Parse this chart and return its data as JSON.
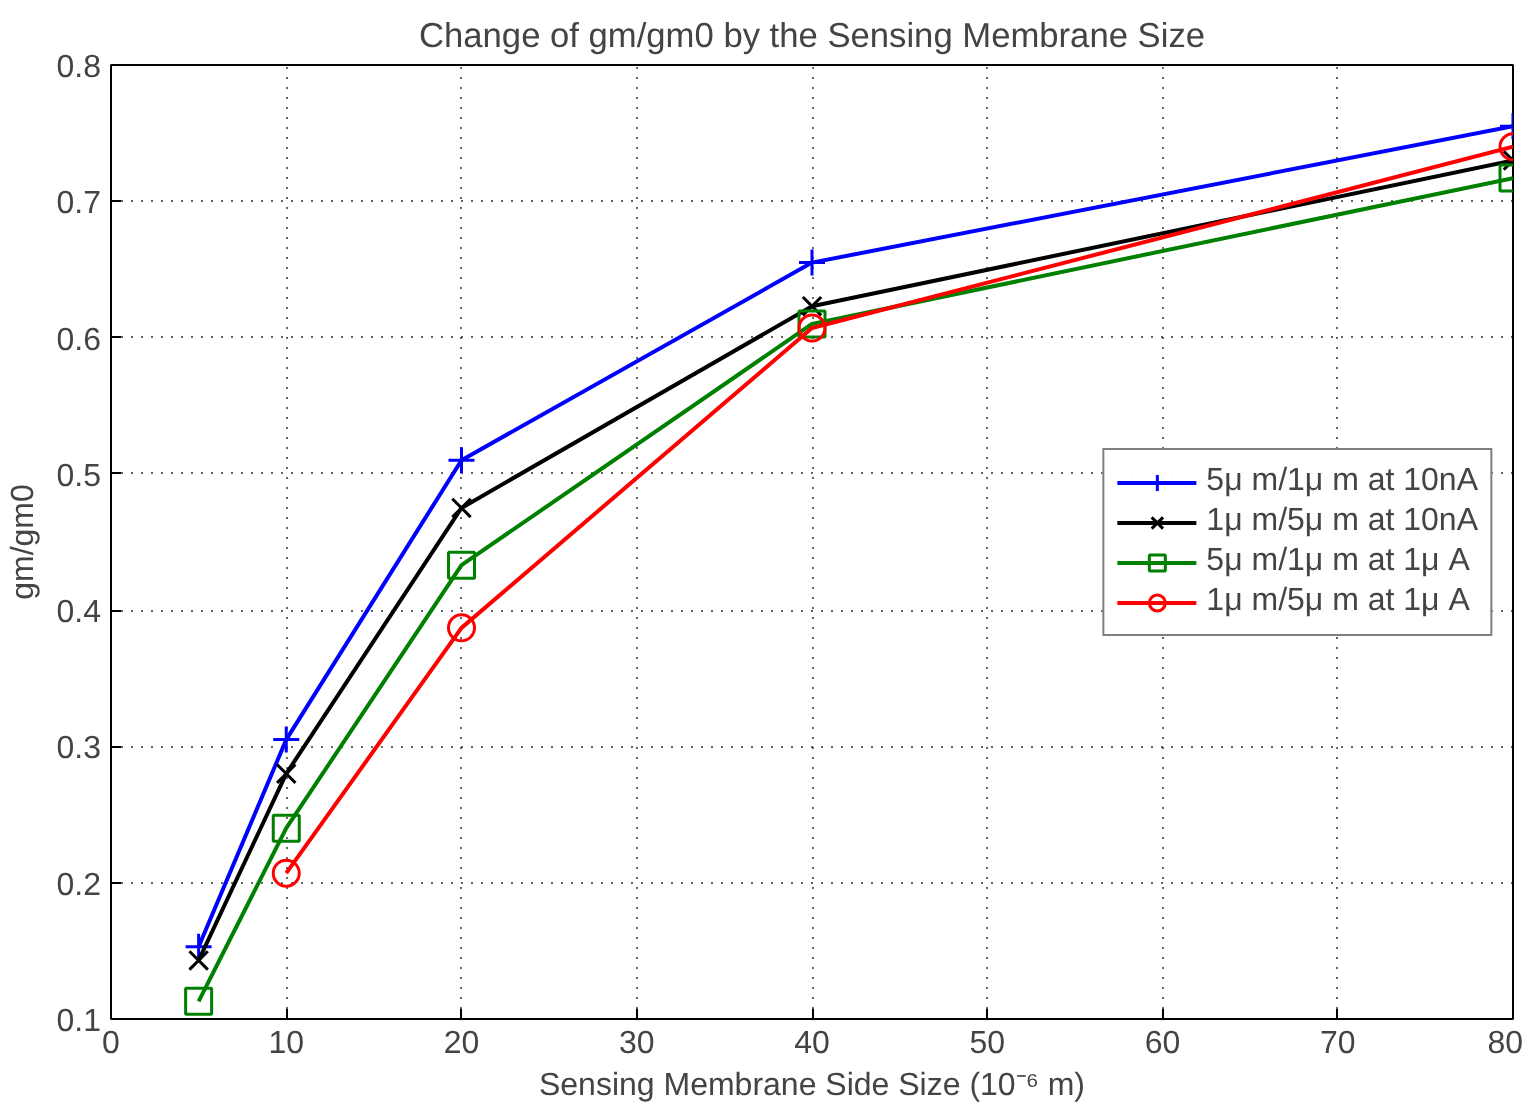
{
  "chart_data": {
    "type": "line",
    "title": "Change of gm/gm0 by the Sensing Membrane Size",
    "xlabel": "Sensing Membrane Side Size (10⁻⁶ m)",
    "ylabel": "gm/gm0",
    "x": [
      5,
      10,
      20,
      40,
      80
    ],
    "series": [
      {
        "name": "5μ m/1μ m at 10nA",
        "color": "#0000ff",
        "marker": "cross",
        "values": [
          0.153,
          0.305,
          0.51,
          0.655,
          0.755
        ]
      },
      {
        "name": "1μ m/5μ m at 10nA",
        "color": "#000000",
        "marker": "x",
        "values": [
          0.143,
          0.28,
          0.475,
          0.623,
          0.73
        ]
      },
      {
        "name": "5μ m/1μ m at 1μ A",
        "color": "#008000",
        "marker": "square",
        "values": [
          0.113,
          0.24,
          0.433,
          0.61,
          0.717
        ]
      },
      {
        "name": "1μ m/5μ m at 1μ A",
        "color": "#ff0000",
        "marker": "circle",
        "x": [
          10,
          20,
          40,
          80
        ],
        "values": [
          0.207,
          0.387,
          0.607,
          0.74
        ]
      }
    ],
    "xlim": [
      0,
      80
    ],
    "xticks": [
      0,
      10,
      20,
      30,
      40,
      50,
      60,
      70,
      80
    ],
    "ylim": [
      0.1,
      0.8
    ],
    "yticks": [
      0.1,
      0.2,
      0.3,
      0.4,
      0.5,
      0.6,
      0.7,
      0.8
    ],
    "grid": true,
    "legend": "right",
    "line_style": "solid"
  }
}
